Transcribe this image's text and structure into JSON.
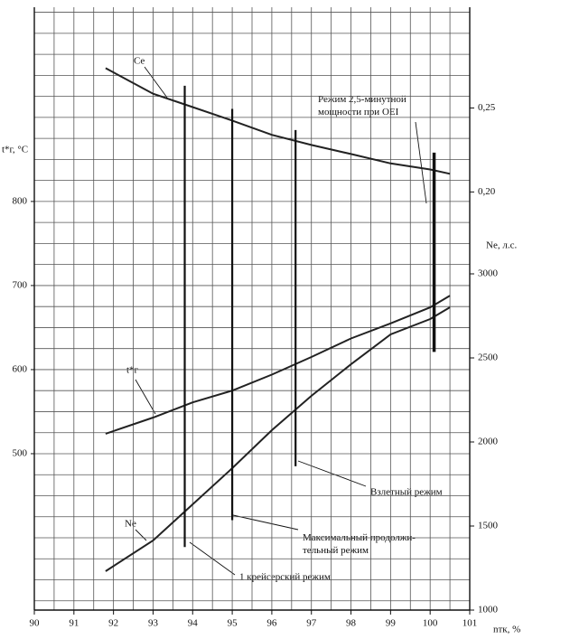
{
  "chart_data": {
    "type": "line",
    "xlabel": "nтк, %",
    "ylabel": "t*г, °C",
    "y2label": "Ne, л.с.",
    "xlim": [
      90,
      101
    ],
    "xticks": [
      90,
      91,
      92,
      93,
      94,
      95,
      96,
      97,
      98,
      99,
      100,
      101
    ],
    "ylim": [
      314,
      1031
    ],
    "yticks": [
      500,
      600,
      700,
      800
    ],
    "y2lim": [
      1000,
      4586
    ],
    "y2ticks": [
      1000,
      1500,
      2000,
      2500,
      3000
    ],
    "y3lim": [
      -0.049,
      0.31
    ],
    "y3ticks": [
      {
        "value": 0.2,
        "label": "0,20"
      },
      {
        "value": 0.25,
        "label": "0,25"
      }
    ],
    "grid": true,
    "grid_step_x": 0.5,
    "grid_step_y": 25,
    "x": [
      91.8,
      93,
      94,
      95,
      96,
      97,
      98,
      99,
      100,
      100.5
    ],
    "series": [
      {
        "name": "Ce",
        "color": "#222222",
        "axis": "y3",
        "values": [
          0.2737,
          0.2585,
          0.2505,
          0.2425,
          0.234,
          0.228,
          0.2226,
          0.217,
          0.2134,
          0.2108
        ]
      },
      {
        "name": "t*г",
        "color": "#222222",
        "axis": "y",
        "values": [
          523.7,
          543,
          561,
          575,
          594,
          615,
          637,
          655,
          674,
          688
        ]
      },
      {
        "name": "Ne",
        "color": "#222222",
        "axis": "y2",
        "values": [
          1231,
          1414,
          1629,
          1844,
          2070,
          2274,
          2462,
          2640,
          2731,
          2801
        ]
      }
    ],
    "modes": [
      {
        "label": "1 крейсерский режим",
        "x": 93.8,
        "span": [
          389,
          937.6
        ]
      },
      {
        "label": "Максимальный продолжи-тельный режим",
        "x": 95,
        "span": [
          421,
          910
        ]
      },
      {
        "label": "Взлетный режим",
        "x": 96.6,
        "span": [
          485,
          885
        ]
      },
      {
        "label": "Режим 2,5-минутной мощности при OEI",
        "x": 100.1,
        "span": [
          621,
          858
        ]
      }
    ]
  }
}
